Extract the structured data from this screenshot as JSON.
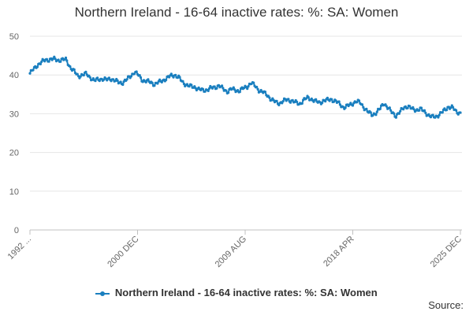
{
  "chart_data": {
    "type": "line",
    "title": "Northern Ireland - 16-64 inactive rates: %: SA: Women",
    "xlabel": "",
    "ylabel": "",
    "ylim": [
      0,
      50
    ],
    "y_ticks": [
      0,
      10,
      20,
      30,
      40,
      50
    ],
    "x_tick_labels": [
      "1992 ...",
      "2000 DEC",
      "2009 AUG",
      "2018 APR",
      "2025 DEC"
    ],
    "x_tick_index": [
      0,
      100,
      200,
      300,
      400
    ],
    "legend_position": "bottom",
    "series": [
      {
        "name": "Northern Ireland - 16-64 inactive rates: %: SA: Women",
        "color": "#1a7fbf",
        "values": [
          40.4,
          41.6,
          42.7,
          43.4,
          43.9,
          44.0,
          44.1,
          43.8,
          43.9,
          44.0,
          42.0,
          40.9,
          39.7,
          40.0,
          40.3,
          39.4,
          38.5,
          38.9,
          39.0,
          38.7,
          39.1,
          38.6,
          38.1,
          38.0,
          38.7,
          39.7,
          40.8,
          39.9,
          38.6,
          38.4,
          38.1,
          37.6,
          38.1,
          38.6,
          39.1,
          39.8,
          40.0,
          39.3,
          38.1,
          37.4,
          37.0,
          36.9,
          36.3,
          36.0,
          36.2,
          36.6,
          36.8,
          37.3,
          36.4,
          35.7,
          36.4,
          36.1,
          35.9,
          36.5,
          37.0,
          38.0,
          37.1,
          36.0,
          35.5,
          34.8,
          33.7,
          33.0,
          32.7,
          33.3,
          33.6,
          33.4,
          32.9,
          32.5,
          33.5,
          34.1,
          33.8,
          33.2,
          32.8,
          33.4,
          33.5,
          33.7,
          33.2,
          32.5,
          31.6,
          32.0,
          32.5,
          33.2,
          32.9,
          31.7,
          30.5,
          29.7,
          30.2,
          31.2,
          32.8,
          31.5,
          30.3,
          29.5,
          30.4,
          31.7,
          31.9,
          31.2,
          31.0,
          31.2,
          30.6,
          29.7,
          29.1,
          29.3,
          30.0,
          30.8,
          31.8,
          31.6,
          30.5,
          30.2
        ]
      }
    ]
  },
  "legend": {
    "label": "Northern Ireland - 16-64 inactive rates: %: SA: Women"
  },
  "footer": {
    "source": "Source:"
  }
}
